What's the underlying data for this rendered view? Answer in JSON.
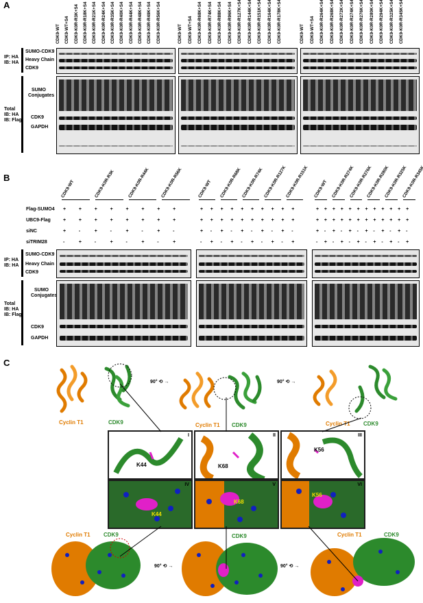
{
  "panels": {
    "a": "A",
    "b": "B",
    "c": "C"
  },
  "panel_a": {
    "groups": [
      [
        "CDK9-WT",
        "CDK9-WT+S4",
        "CDK9-K0R-R3K+S4",
        "CDK9-K0R-R18K+S4",
        "CDK9-K0R-R21K+S4",
        "CDK9-K0R-R24K+S4",
        "CDK9-K0R-R35K+S4",
        "CDK9-K0R-R40K+S4",
        "CDK9-K0R-R44K+S4",
        "CDK9-K0R-R48K+S4",
        "CDK9-K0R-R49K+S4",
        "CDK9-K0R-R56K+S4"
      ],
      [
        "CDK9-WT",
        "CDK9-WT+S4",
        "CDK9-K0R-R68K+S4",
        "CDK9-K0R-R74K+S4",
        "CDK9-K0R-R88K+S4",
        "CDK9-K0R-R96K+S4",
        "CDK9-K0R-R127K+S4",
        "CDK9-K0R-R144K+S4",
        "CDK9-K0R-R151K+S4",
        "CDK9-K0R-R164K+S4",
        "CDK9-K0R-R178K+S4"
      ],
      [
        "CDK9-WT",
        "CDK9-WT+S4",
        "CDK9-K0R-R264K+S4",
        "CDK9-K0R-R268K+S4",
        "CDK9-K0R-R272K+S4",
        "CDK9-K0R-R274K+S4",
        "CDK9-K0R-R276K+S4",
        "CDK9-K0R-R280K+S4",
        "CDK9-K0R-R294K+S4",
        "CDK9-K0R-R325K+S4",
        "CDK9-K0R-R345K+S4"
      ]
    ],
    "ip_label": [
      "IP: HA",
      "IB: HA"
    ],
    "ip_bands": [
      "SUMO-CDK9",
      "Heavy Chain",
      "CDK9"
    ],
    "total_label": [
      "Total",
      "IB: HA",
      "IB: Flag"
    ],
    "total_bands": [
      "SUMO",
      "Conjugates",
      "CDK9",
      "GAPDH"
    ]
  },
  "panel_b": {
    "groups": [
      [
        "CDK9-WT",
        "CDK9-K0R-R3K",
        "CDK9-K0R-R44K",
        "CDK9-K0R-R56K"
      ],
      [
        "CDK9-WT",
        "CDK9-K0R-R68K",
        "CDK9-K0R-R74K",
        "CDK9-K0R-R127K",
        "CDK9-K0R-R151K"
      ],
      [
        "CDK9-WT",
        "CDK9-K0R-R274K",
        "CDK9-K0R-R276K",
        "CDK9-K0R-R280K",
        "CDK9-K0R-R325K",
        "CDK9-K0R-R345K"
      ]
    ],
    "conditions": [
      "Flag-SUMO4",
      "UBC9-Flag",
      "siNC",
      "siTRIM28"
    ],
    "condition_symbols": [
      [
        "+",
        "+",
        "+",
        "+",
        "+",
        "+",
        "+",
        "+"
      ],
      [
        "+",
        "+",
        "+",
        "+",
        "+",
        "+",
        "+",
        "+"
      ],
      [
        "+",
        "-",
        "+",
        "-",
        "+",
        "-",
        "+",
        "-"
      ],
      [
        "-",
        "+",
        "-",
        "+",
        "-",
        "+",
        "-",
        "+"
      ]
    ],
    "ip_label": [
      "IP: HA",
      "IB: HA"
    ],
    "ip_bands": [
      "SUMO-CDK9",
      "Heavy Chain",
      "CDK9"
    ],
    "total_label": [
      "Total",
      "IB: HA",
      "IB: Flag"
    ],
    "total_bands": [
      "SUMO",
      "Conjugates",
      "CDK9",
      "GAPDH"
    ]
  },
  "panel_c": {
    "cyclin": "Cyclin T1",
    "cdk9": "CDK9",
    "rotation": "90°",
    "zooms": [
      {
        "tag": "I",
        "residue": "K44"
      },
      {
        "tag": "II",
        "residue": "K68"
      },
      {
        "tag": "III",
        "residue": "K56"
      },
      {
        "tag": "IV",
        "residue": "K44"
      },
      {
        "tag": "V",
        "residue": "K68"
      },
      {
        "tag": "VI",
        "residue": "K56"
      }
    ]
  },
  "colors": {
    "orange": "#e07b00",
    "green": "#2c8a2c",
    "magenta": "#e020c8",
    "blue": "#1020c0"
  }
}
